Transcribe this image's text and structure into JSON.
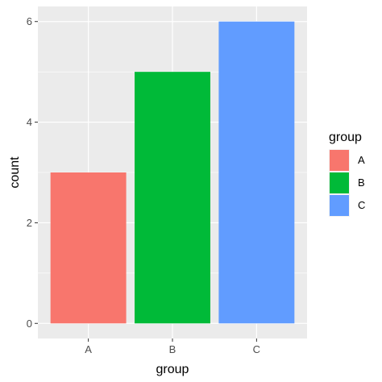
{
  "chart_data": {
    "type": "bar",
    "categories": [
      "A",
      "B",
      "C"
    ],
    "values": [
      3,
      5,
      6
    ],
    "xlabel": "group",
    "ylabel": "count",
    "ylim": [
      0,
      6
    ],
    "y_ticks": [
      "0",
      "2",
      "4",
      "6"
    ],
    "grid": true,
    "legend": {
      "title": "group",
      "placement": "right",
      "items": [
        {
          "label": "A",
          "color": "#F8766D"
        },
        {
          "label": "B",
          "color": "#00BA38"
        },
        {
          "label": "C",
          "color": "#619CFF"
        }
      ]
    },
    "colors": [
      "#F8766D",
      "#00BA38",
      "#619CFF"
    ],
    "panel_background": "#EBEBEB",
    "grid_color": "#FFFFFF"
  }
}
